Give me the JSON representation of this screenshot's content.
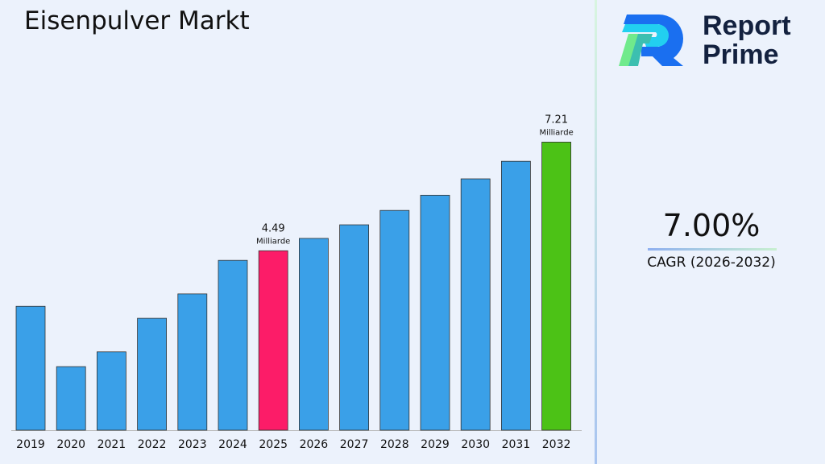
{
  "title": "Eisenpulver Markt",
  "logo": {
    "line1": "Report",
    "line2": "Prime"
  },
  "cagr": {
    "value": "7.00%",
    "label": "CAGR (2026-2032)"
  },
  "chart_data": {
    "type": "bar",
    "title": "Eisenpulver Markt",
    "categories": [
      "2019",
      "2020",
      "2021",
      "2022",
      "2023",
      "2024",
      "2025",
      "2026",
      "2027",
      "2028",
      "2029",
      "2030",
      "2031",
      "2032"
    ],
    "values": [
      3.1,
      1.59,
      1.96,
      2.8,
      3.41,
      4.25,
      4.49,
      4.8,
      5.14,
      5.5,
      5.88,
      6.29,
      6.73,
      7.21
    ],
    "unit": "Milliarde",
    "annotations": [
      {
        "category": "2025",
        "value": "4.49",
        "unit": "Milliarde"
      },
      {
        "category": "2032",
        "value": "7.21",
        "unit": "Milliarde"
      }
    ],
    "colors": {
      "default": "#3aa0e8",
      "highlight_2025": "#fc1c68",
      "highlight_2032": "#4cc216"
    },
    "ylim": [
      0,
      7.3
    ],
    "grid": false,
    "legend": "none"
  }
}
